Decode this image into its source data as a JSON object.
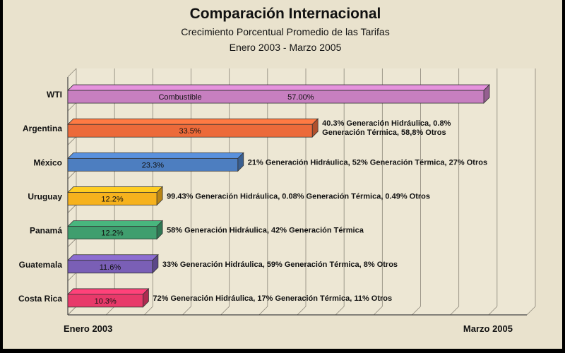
{
  "chart_data": {
    "type": "bar",
    "orientation": "horizontal",
    "title": "Comparación Internacional",
    "subtitle": "Crecimiento Porcentual Promedio de las Tarifas",
    "period": "Enero 2003 - Marzo 2005",
    "x_start_label": "Enero 2003",
    "x_end_label": "Marzo 2005",
    "xlim": [
      0,
      60
    ],
    "grid": true,
    "categories": [
      "WTI",
      "Argentina",
      "México",
      "Uruguay",
      "Panamá",
      "Guatemala",
      "Costa Rica"
    ],
    "values": [
      57.0,
      33.5,
      23.3,
      12.2,
      12.2,
      11.6,
      10.3
    ],
    "bar_labels": [
      "57.00%",
      "33.5%",
      "23.3%",
      "12.2%",
      "12.2%",
      "11.6%",
      "10.3%"
    ],
    "inner_labels": [
      "Combustible",
      "",
      "",
      "",
      "",
      "",
      ""
    ],
    "annotations": [
      [],
      [
        "40.3% Generación Hidráulica, 0.8%",
        "Generación Térmica, 58,8% Otros"
      ],
      [
        "21% Generación Hidráulica, 52% Generación Térmica, 27% Otros"
      ],
      [
        "99.43% Generación Hidráulica, 0.08% Generación Térmica, 0.49% Otros"
      ],
      [
        "58% Generación Hidráulica, 42% Generación Térmica"
      ],
      [
        "33% Generación Hidráulica, 59% Generación Térmica, 8% Otros"
      ],
      [
        "72% Generación Hidráulica, 17% Generación Térmica, 11% Otros"
      ]
    ],
    "colors": [
      "#c77fc0",
      "#ec6a3a",
      "#4d7ec0",
      "#f6b21d",
      "#3f9e6e",
      "#7a5fb6",
      "#e8396a"
    ]
  }
}
